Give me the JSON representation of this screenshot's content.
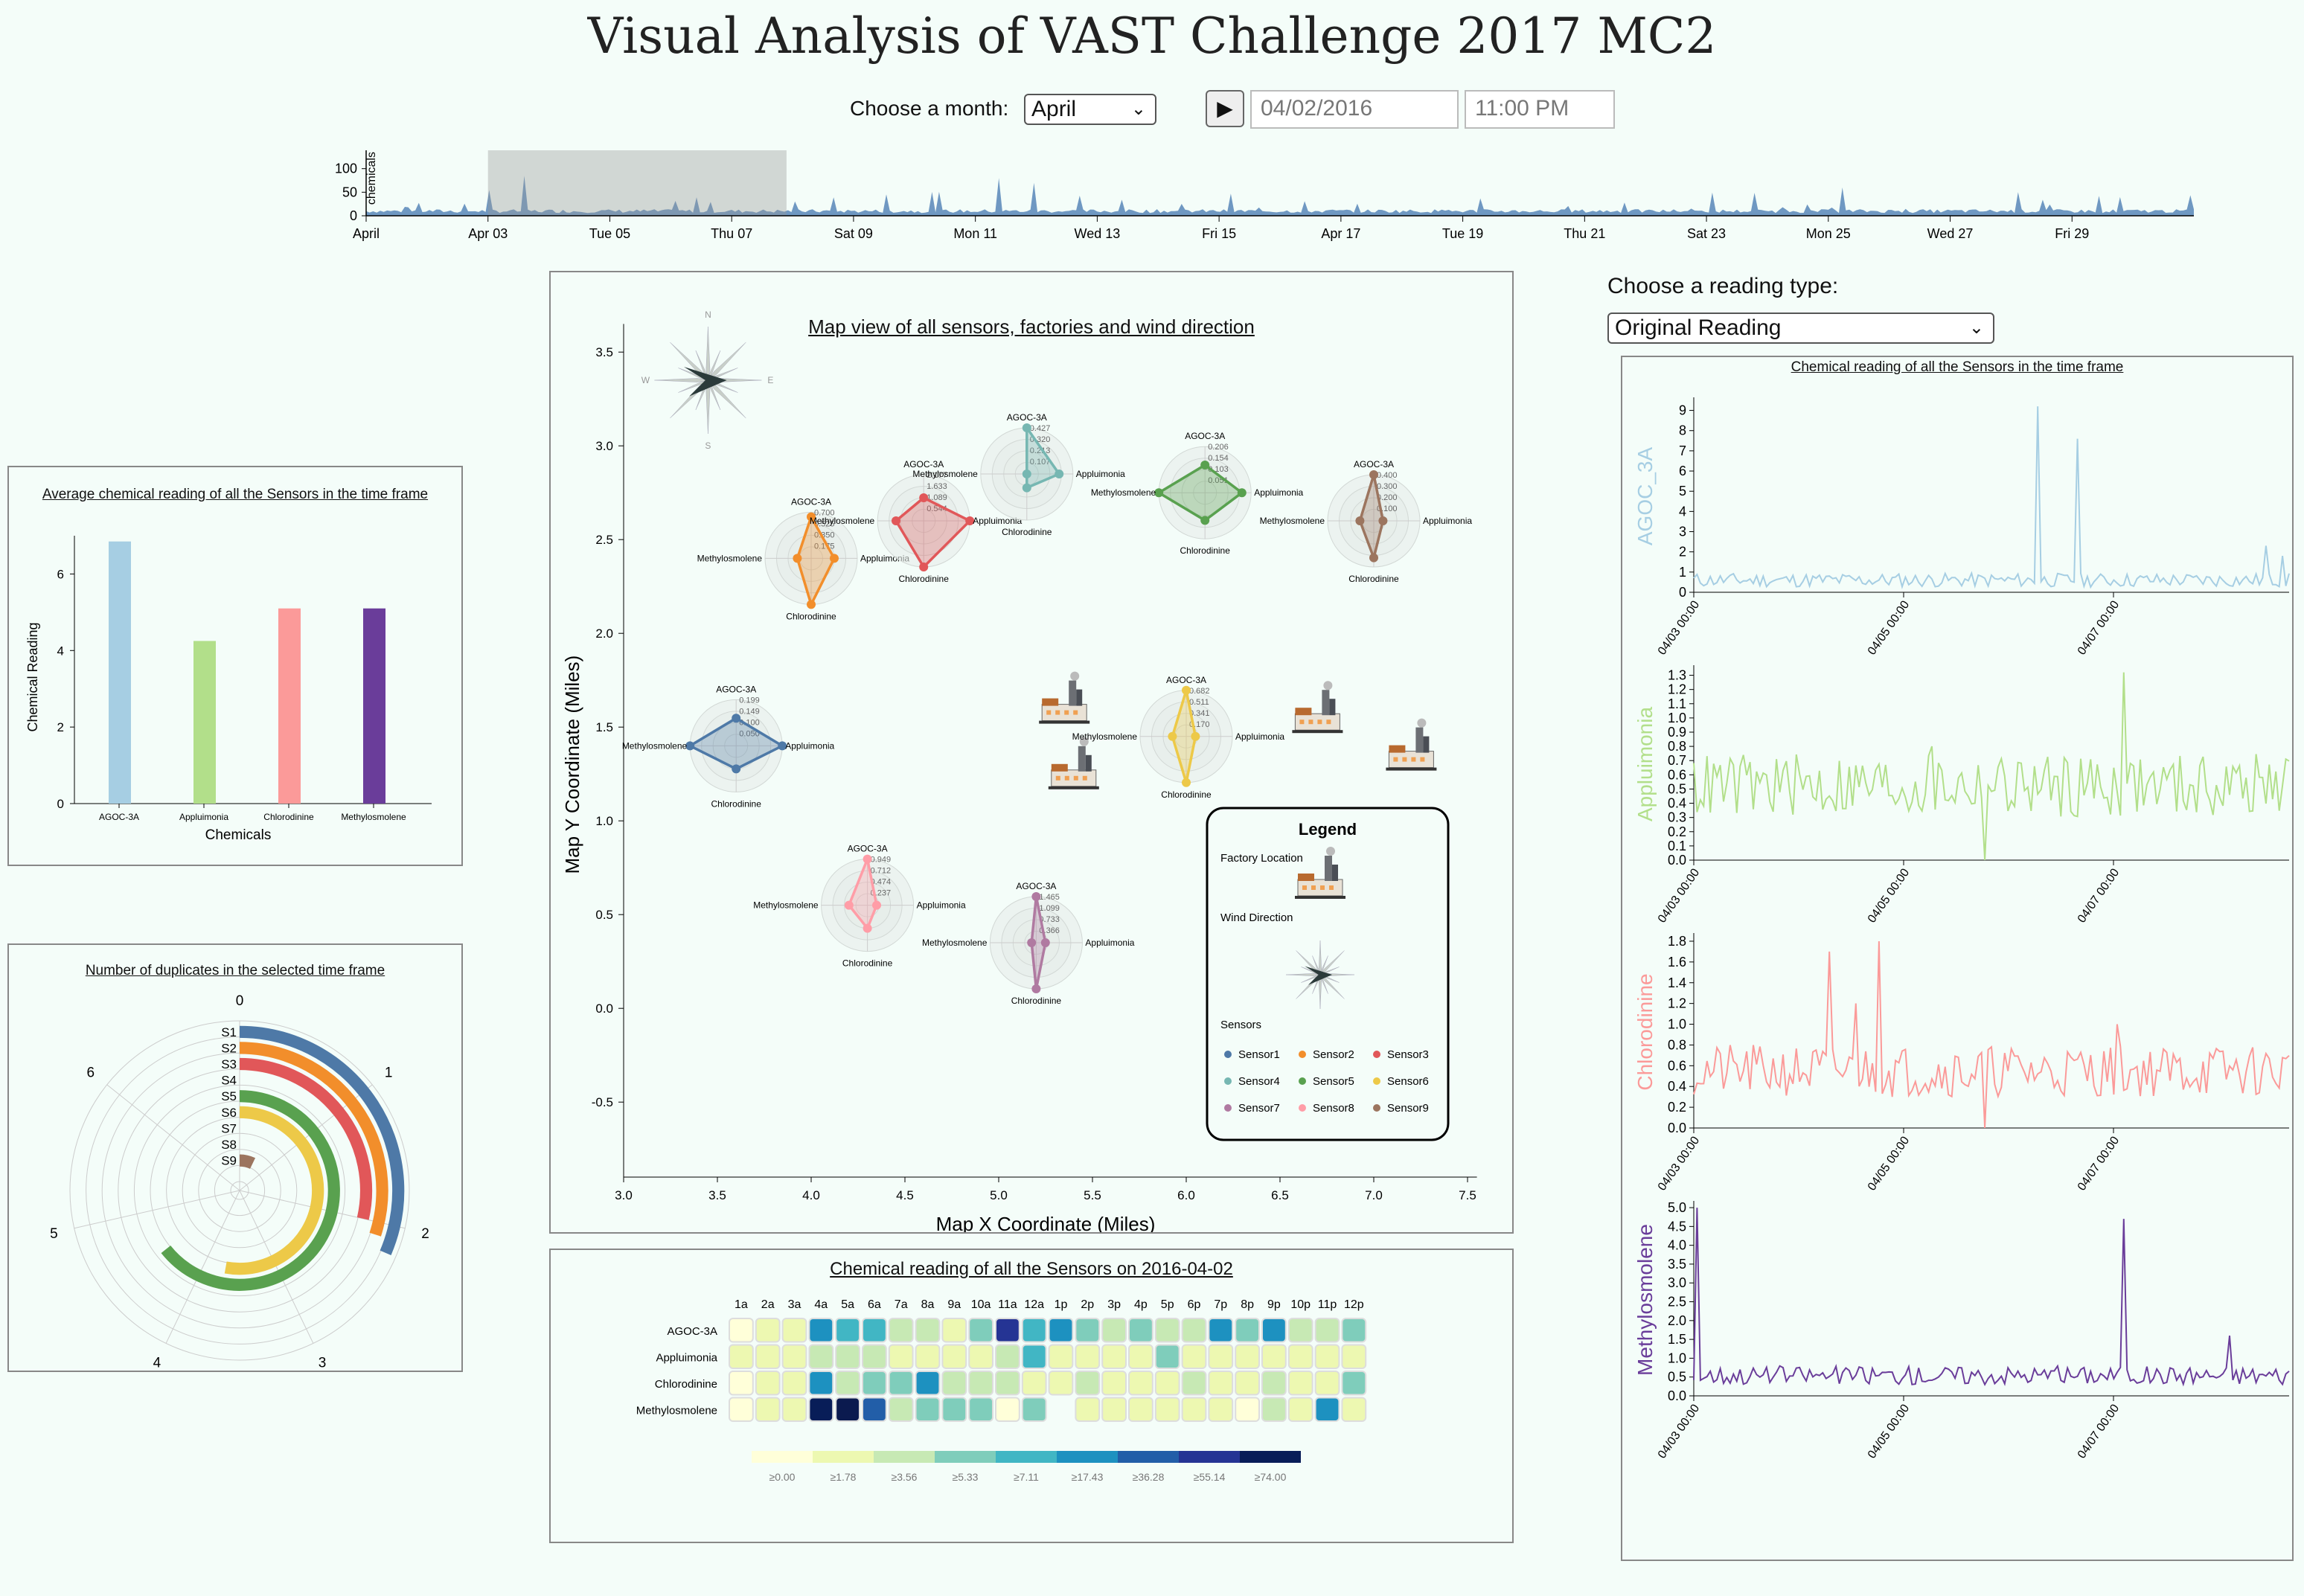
{
  "title": "Visual Analysis of VAST Challenge 2017 MC2",
  "controls": {
    "month_label": "Choose a month:",
    "month_value": "April",
    "play_icon": "play-icon",
    "date_value": "04/02/2016",
    "time_value": "11:00 PM",
    "reading_label": "Choose a reading type:",
    "reading_value": "Original Reading"
  },
  "timeline": {
    "ylabel": "chemicals",
    "y_ticks": [
      "100",
      "50",
      "0"
    ],
    "x_ticks": [
      "April",
      "Apr 03",
      "Tue 05",
      "Thu 07",
      "Sat 09",
      "Mon 11",
      "Wed 13",
      "Fri 15",
      "Apr 17",
      "Tue 19",
      "Thu 21",
      "Sat 23",
      "Mon 25",
      "Wed 27",
      "Fri 29"
    ],
    "brush_range": [
      "Apr 03",
      "Apr 08"
    ],
    "color": "#6f98c2"
  },
  "avg_chart": {
    "title": "Average chemical reading of all the Sensors in the time frame",
    "xlabel": "Chemicals",
    "ylabel": "Chemical Reading",
    "y_ticks": [
      "0",
      "2",
      "4",
      "6"
    ],
    "chart_data": {
      "type": "bar",
      "categories": [
        "AGOC-3A",
        "Appluimonia",
        "Chlorodinine",
        "Methylosmolene"
      ],
      "values": [
        6.85,
        4.25,
        5.1,
        5.1
      ],
      "colors": [
        "#a6cee3",
        "#b2df8a",
        "#fb9a99",
        "#6a3d9a"
      ],
      "ylim": [
        0,
        7
      ]
    }
  },
  "dup_chart": {
    "title": "Number of duplicates in the selected time frame",
    "sensors": [
      "S1",
      "S2",
      "S3",
      "S4",
      "S5",
      "S6",
      "S7",
      "S8",
      "S9"
    ],
    "angle_ticks": [
      "0",
      "1",
      "2",
      "3",
      "4",
      "5",
      "6"
    ],
    "values": [
      2.2,
      2.1,
      2.0,
      0,
      4.5,
      3.7,
      0,
      0,
      0.5
    ],
    "colors": [
      "#4e79a7",
      "#f28e2b",
      "#e15759",
      "#76b7b2",
      "#59a14f",
      "#edc948",
      "#b07aa1",
      "#ff9da7",
      "#9c755f"
    ]
  },
  "map": {
    "title": "Map view of all sensors, factories and wind direction",
    "xlabel": "Map X Coordinate (Miles)",
    "ylabel": "Map Y Coordinate (Miles)",
    "x_ticks": [
      "3.0",
      "3.5",
      "4.0",
      "4.5",
      "5.0",
      "5.5",
      "6.0",
      "6.5",
      "7.0",
      "7.5"
    ],
    "y_ticks": [
      "3.5",
      "3.0",
      "2.5",
      "2.0",
      "1.5",
      "1.0",
      "0.5",
      "0.0",
      "-0.5"
    ],
    "compass": [
      "N",
      "E",
      "S",
      "W"
    ],
    "axes_labels": [
      "AGOC-3A",
      "Appluimonia",
      "Chlorodinine",
      "Methylosmolene"
    ],
    "sensors": [
      {
        "name": "Sensor1",
        "x": 3.6,
        "y": 1.4,
        "color": "#4e79a7",
        "ticks": [
          "0.199",
          "0.149",
          "0.100",
          "0.050"
        ],
        "v": [
          0.6,
          1.0,
          0.5,
          1.0
        ]
      },
      {
        "name": "Sensor2",
        "x": 4.0,
        "y": 2.4,
        "color": "#f28e2b",
        "ticks": [
          "0.700",
          "0.525",
          "0.350",
          "0.175"
        ],
        "v": [
          0.9,
          0.5,
          1.0,
          0.3
        ]
      },
      {
        "name": "Sensor3",
        "x": 4.6,
        "y": 2.6,
        "color": "#e15759",
        "ticks": [
          "2.177",
          "1.633",
          "1.089",
          "0.544"
        ],
        "v": [
          0.5,
          1.0,
          1.0,
          0.6
        ]
      },
      {
        "name": "Sensor4",
        "x": 5.15,
        "y": 2.85,
        "color": "#76b7b2",
        "ticks": [
          "0.427",
          "0.320",
          "0.213",
          "0.107"
        ],
        "v": [
          1.0,
          0.7,
          0.3,
          0.0
        ]
      },
      {
        "name": "Sensor5",
        "x": 6.1,
        "y": 2.75,
        "color": "#59a14f",
        "ticks": [
          "0.206",
          "0.154",
          "0.103",
          "0.051"
        ],
        "v": [
          0.6,
          0.8,
          0.6,
          1.0
        ]
      },
      {
        "name": "Sensor6",
        "x": 6.0,
        "y": 1.45,
        "color": "#edc948",
        "ticks": [
          "0.682",
          "0.511",
          "0.341",
          "0.170"
        ],
        "v": [
          1.0,
          0.2,
          1.0,
          0.3
        ]
      },
      {
        "name": "Sensor7",
        "x": 5.2,
        "y": 0.35,
        "color": "#b07aa1",
        "ticks": [
          "1.465",
          "1.099",
          "0.733",
          "0.366"
        ],
        "v": [
          1.0,
          0.2,
          1.0,
          0.1
        ]
      },
      {
        "name": "Sensor8",
        "x": 4.3,
        "y": 0.55,
        "color": "#ff9da7",
        "ticks": [
          "0.949",
          "0.712",
          "0.474",
          "0.237"
        ],
        "v": [
          1.0,
          0.2,
          0.5,
          0.4
        ]
      },
      {
        "name": "Sensor9",
        "x": 7.0,
        "y": 2.6,
        "color": "#9c755f",
        "ticks": [
          "0.400",
          "0.300",
          "0.200",
          "0.100"
        ],
        "v": [
          1.0,
          0.2,
          0.8,
          0.3
        ]
      }
    ],
    "factories": [
      {
        "x": 5.35,
        "y": 1.55
      },
      {
        "x": 5.4,
        "y": 1.2
      },
      {
        "x": 6.7,
        "y": 1.5
      },
      {
        "x": 7.2,
        "y": 1.3
      }
    ],
    "legend": {
      "title": "Legend",
      "factory_label": "Factory Location",
      "wind_label": "Wind Direction",
      "sensors_label": "Sensors"
    }
  },
  "heatmap": {
    "title": "Chemical reading of all the Sensors on 2016-04-02",
    "hours": [
      "1a",
      "2a",
      "3a",
      "4a",
      "5a",
      "6a",
      "7a",
      "8a",
      "9a",
      "10a",
      "11a",
      "12a",
      "1p",
      "2p",
      "3p",
      "4p",
      "5p",
      "6p",
      "7p",
      "8p",
      "9p",
      "10p",
      "11p",
      "12p"
    ],
    "rows": [
      "AGOC-3A",
      "Appluimonia",
      "Chlorodinine",
      "Methylosmolene"
    ],
    "levels": [
      [
        0,
        1,
        1,
        5,
        4,
        4,
        2,
        2,
        1,
        3,
        7,
        4,
        5,
        3,
        2,
        3,
        2,
        2,
        5,
        3,
        5,
        2,
        2,
        3
      ],
      [
        1,
        1,
        1,
        2,
        2,
        2,
        1,
        1,
        1,
        1,
        2,
        4,
        1,
        1,
        1,
        1,
        3,
        1,
        1,
        1,
        1,
        1,
        1,
        1
      ],
      [
        0,
        1,
        1,
        5,
        2,
        3,
        3,
        5,
        2,
        2,
        2,
        1,
        1,
        2,
        1,
        1,
        1,
        2,
        1,
        1,
        2,
        1,
        1,
        3
      ],
      [
        0,
        1,
        1,
        8,
        9,
        6,
        2,
        3,
        3,
        3,
        0,
        3,
        -1,
        1,
        1,
        1,
        1,
        1,
        1,
        0,
        2,
        1,
        5,
        1
      ]
    ],
    "scale_labels": [
      "≥0.00",
      "≥1.78",
      "≥3.56",
      "≥5.33",
      "≥7.11",
      "≥17.43",
      "≥36.28",
      "≥55.14",
      "≥74.00"
    ],
    "scale_colors": [
      "#ffffd9",
      "#edf8b1",
      "#c7e9b4",
      "#7fcdbb",
      "#41b6c4",
      "#1d91c0",
      "#225ea8",
      "#253494",
      "#081d58",
      "#0b1a4f"
    ]
  },
  "lines": {
    "title": "Chemical reading of all the Sensors in the time frame",
    "x_ticks": [
      "04/03 00:00",
      "04/05 00:00",
      "04/07 00:00"
    ],
    "charts": [
      {
        "name": "AGOC_3A",
        "color": "#a6cee3",
        "ticks": [
          "9",
          "8",
          "7",
          "6",
          "5",
          "4",
          "3",
          "2",
          "1",
          "0"
        ],
        "max": 9.5
      },
      {
        "name": "Appluimonia",
        "color": "#b2df8a",
        "ticks": [
          "1.3",
          "1.2",
          "1.1",
          "1.0",
          "0.9",
          "0.8",
          "0.7",
          "0.6",
          "0.5",
          "0.4",
          "0.3",
          "0.2",
          "0.1",
          "0.0"
        ],
        "max": 1.35
      },
      {
        "name": "Chlorodinine",
        "color": "#fb9a99",
        "ticks": [
          "1.8",
          "1.6",
          "1.4",
          "1.2",
          "1.0",
          "0.8",
          "0.6",
          "0.4",
          "0.2",
          "0.0"
        ],
        "max": 1.85
      },
      {
        "name": "Methylosmolene",
        "color": "#6a3d9a",
        "ticks": [
          "5.0",
          "4.5",
          "4.0",
          "3.5",
          "3.0",
          "2.5",
          "2.0",
          "1.5",
          "1.0",
          "0.5",
          "0.0"
        ],
        "max": 5.1
      }
    ]
  }
}
